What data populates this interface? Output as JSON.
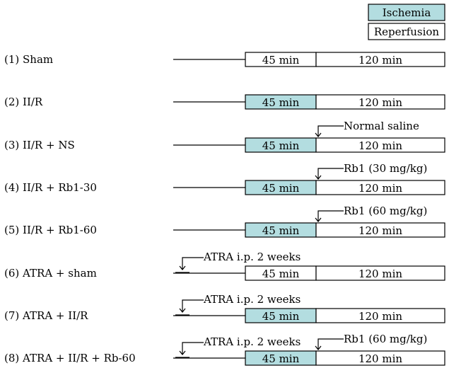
{
  "legend": [
    {
      "label": "Ischemia",
      "color": "#b3dde0"
    },
    {
      "label": "Reperfusion",
      "color": "#ffffff"
    }
  ],
  "colors": {
    "ischemia": "#b3dde0",
    "plain": "#ffffff",
    "line": "#000000"
  },
  "groups": [
    {
      "label": "(1) Sham",
      "ischemia_label": "45 min",
      "reperfusion_label": "120 min",
      "ischemia_shaded": false,
      "pre_annotation": "",
      "treatment_annotation": ""
    },
    {
      "label": "(2) II/R",
      "ischemia_label": "45 min",
      "reperfusion_label": "120 min",
      "ischemia_shaded": true,
      "pre_annotation": "",
      "treatment_annotation": ""
    },
    {
      "label": "(3) II/R + NS",
      "ischemia_label": "45 min",
      "reperfusion_label": "120 min",
      "ischemia_shaded": true,
      "pre_annotation": "",
      "treatment_annotation": "Normal saline"
    },
    {
      "label": "(4) II/R + Rb1-30",
      "ischemia_label": "45 min",
      "reperfusion_label": "120 min",
      "ischemia_shaded": true,
      "pre_annotation": "",
      "treatment_annotation": "Rb1 (30 mg/kg)"
    },
    {
      "label": "(5) II/R + Rb1-60",
      "ischemia_label": "45 min",
      "reperfusion_label": "120 min",
      "ischemia_shaded": true,
      "pre_annotation": "",
      "treatment_annotation": "Rb1 (60 mg/kg)"
    },
    {
      "label": "(6) ATRA + sham",
      "ischemia_label": "45 min",
      "reperfusion_label": "120 min",
      "ischemia_shaded": false,
      "pre_annotation": "ATRA i.p. 2 weeks",
      "treatment_annotation": ""
    },
    {
      "label": "(7) ATRA + II/R",
      "ischemia_label": "45 min",
      "reperfusion_label": "120 min",
      "ischemia_shaded": true,
      "pre_annotation": "ATRA i.p. 2 weeks",
      "treatment_annotation": ""
    },
    {
      "label": "(8) ATRA + II/R + Rb-60",
      "ischemia_label": "45 min",
      "reperfusion_label": "120 min",
      "ischemia_shaded": true,
      "pre_annotation": "ATRA i.p. 2 weeks",
      "treatment_annotation": "Rb1 (60 mg/kg)"
    }
  ]
}
